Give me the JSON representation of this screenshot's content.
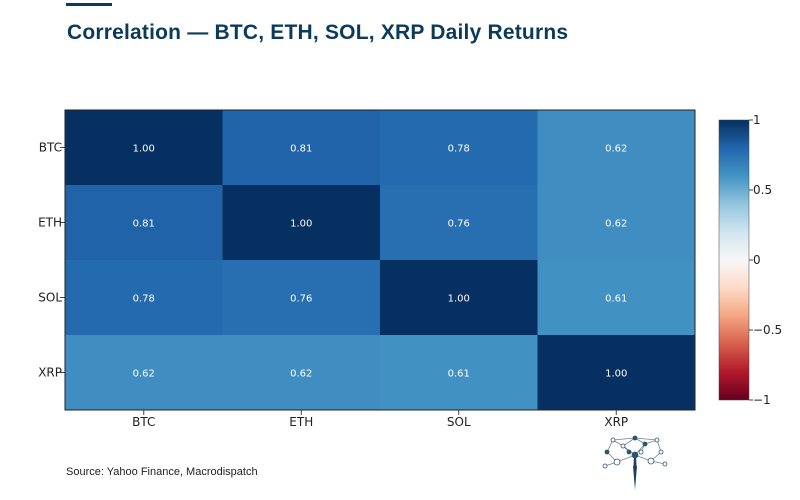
{
  "title": "Correlation — BTC, ETH, SOL, XRP Daily Returns",
  "source": "Source: Yahoo Finance, Macrodispatch",
  "logo": "tree-network-logo",
  "colors": {
    "title": "#0b3a5a",
    "scale": [
      "#67001f",
      "#b2182b",
      "#d6604d",
      "#f4a582",
      "#fddbc7",
      "#f7f7f7",
      "#d1e5f0",
      "#92c5de",
      "#4393c3",
      "#2166ac",
      "#053061"
    ]
  },
  "chart_data": {
    "type": "heatmap",
    "title": "Correlation — BTC, ETH, SOL, XRP Daily Returns",
    "x_categories": [
      "BTC",
      "ETH",
      "SOL",
      "XRP"
    ],
    "y_categories": [
      "BTC",
      "ETH",
      "SOL",
      "XRP"
    ],
    "values": [
      [
        1.0,
        0.81,
        0.78,
        0.62
      ],
      [
        0.81,
        1.0,
        0.76,
        0.62
      ],
      [
        0.78,
        0.76,
        1.0,
        0.61
      ],
      [
        0.62,
        0.62,
        0.61,
        1.0
      ]
    ],
    "labels": [
      [
        "1.00",
        "0.81",
        "0.78",
        "0.62"
      ],
      [
        "0.81",
        "1.00",
        "0.76",
        "0.62"
      ],
      [
        "0.78",
        "0.76",
        "1.00",
        "0.61"
      ],
      [
        "0.62",
        "0.62",
        "0.61",
        "1.00"
      ]
    ],
    "colorbar": {
      "range": [
        -1,
        1
      ],
      "tick_values": [
        1,
        0.5,
        0,
        -0.5,
        -1
      ],
      "tick_labels": [
        "1",
        "0.5",
        "0",
        "−0.5",
        "−1"
      ]
    }
  }
}
